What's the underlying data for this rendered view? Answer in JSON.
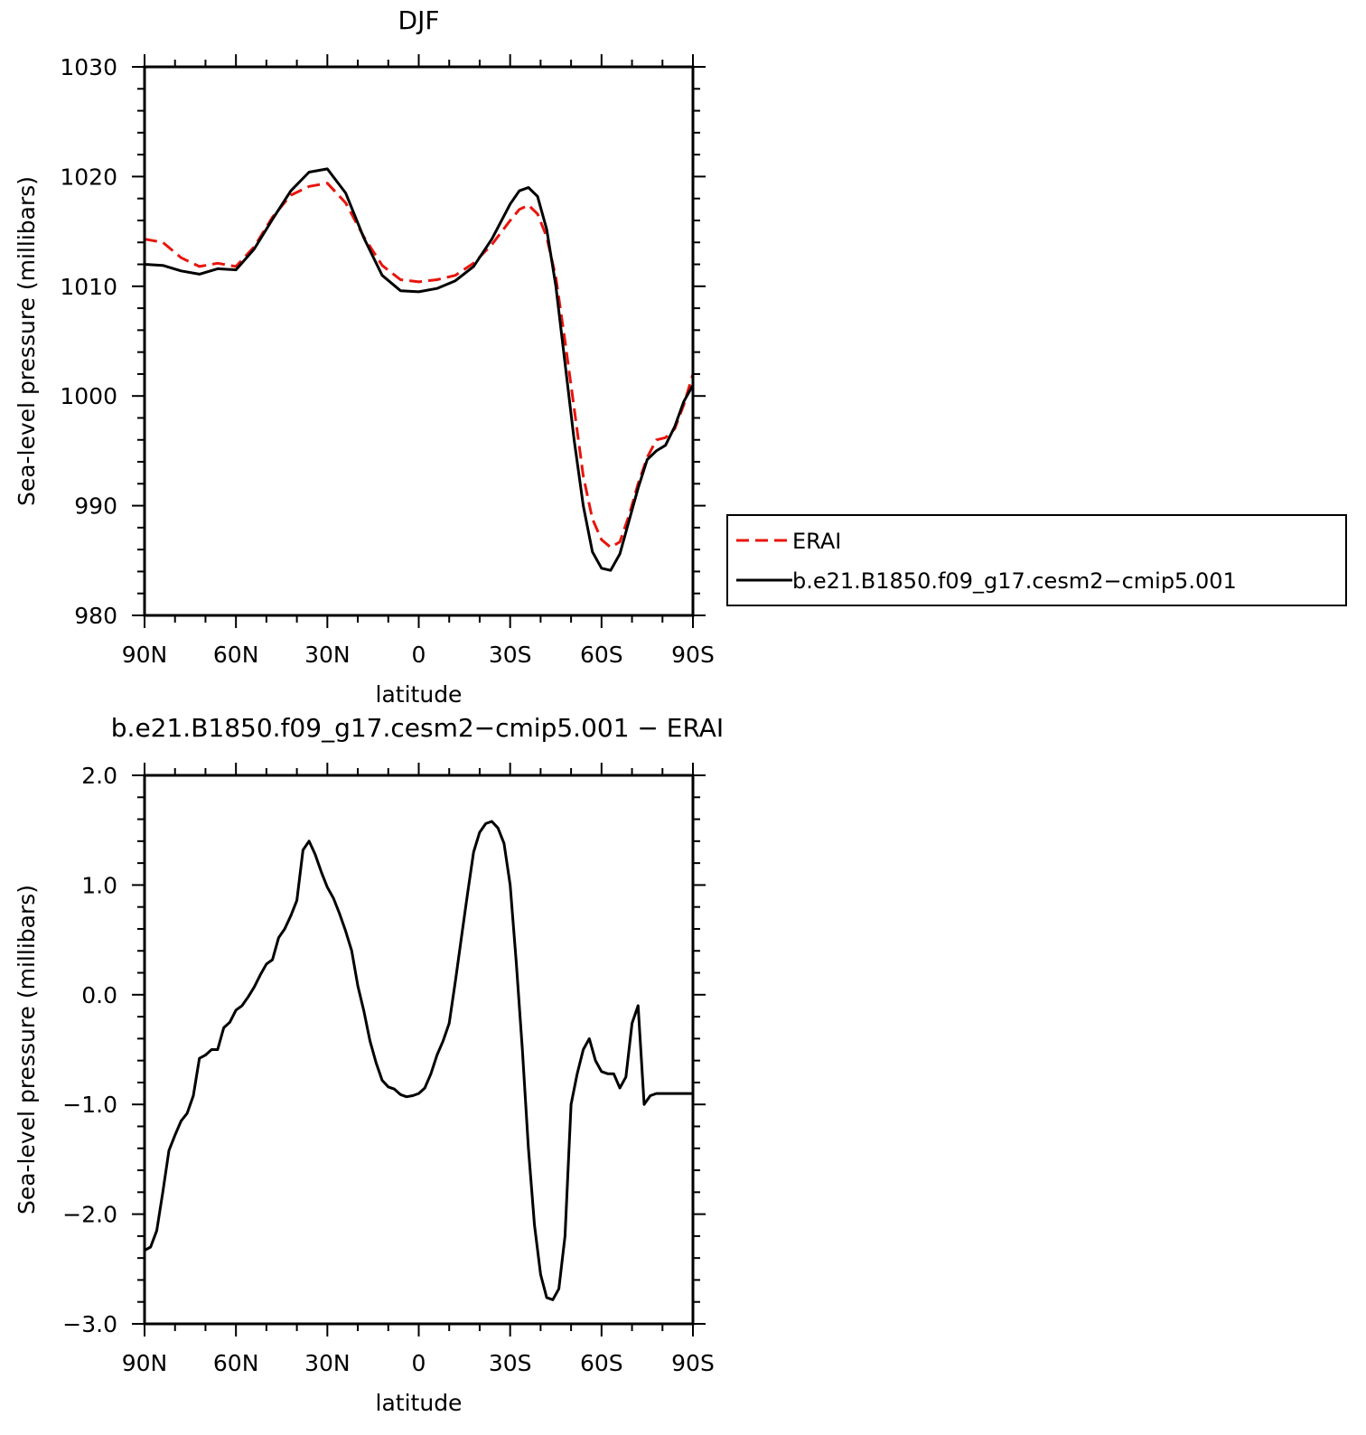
{
  "chart_data": [
    {
      "type": "line",
      "title": "DJF",
      "xlabel": "latitude",
      "ylabel": "Sea-level pressure (millibars)",
      "x_ticks": [
        {
          "value": -90,
          "label": "90N"
        },
        {
          "value": -60,
          "label": "60N"
        },
        {
          "value": -30,
          "label": "30N"
        },
        {
          "value": 0,
          "label": "0"
        },
        {
          "value": 30,
          "label": "30S"
        },
        {
          "value": 60,
          "label": "60S"
        },
        {
          "value": 90,
          "label": "90S"
        }
      ],
      "xlim": [
        -90,
        90
      ],
      "ylim": [
        980,
        1030
      ],
      "y_ticks": [
        {
          "value": 980,
          "label": "980"
        },
        {
          "value": 990,
          "label": "990"
        },
        {
          "value": 1000,
          "label": "1000"
        },
        {
          "value": 1010,
          "label": "1010"
        },
        {
          "value": 1020,
          "label": "1020"
        },
        {
          "value": 1030,
          "label": "1030"
        }
      ],
      "legend": {
        "placement": "right"
      },
      "series": [
        {
          "name": "ERAI",
          "color": "#e8140c",
          "dash": "dashed",
          "x": [
            -90,
            -84,
            -78,
            -72,
            -66,
            -60,
            -54,
            -48,
            -42,
            -36,
            -30,
            -24,
            -18,
            -12,
            -6,
            0,
            6,
            12,
            18,
            24,
            30,
            33,
            36,
            39,
            42,
            45,
            48,
            51,
            54,
            57,
            60,
            63,
            66,
            69,
            72,
            75,
            78,
            81,
            84,
            87,
            90
          ],
          "y": [
            1014.3,
            1014.0,
            1012.6,
            1011.8,
            1012.1,
            1011.8,
            1013.6,
            1016.3,
            1018.3,
            1019.1,
            1019.4,
            1017.6,
            1014.5,
            1011.9,
            1010.6,
            1010.4,
            1010.6,
            1011.0,
            1012.1,
            1013.8,
            1016.0,
            1017.0,
            1017.4,
            1016.6,
            1014.5,
            1010.8,
            1005.0,
            998.9,
            992.7,
            988.8,
            986.9,
            986.2,
            986.7,
            989.1,
            992.0,
            994.4,
            996.0,
            996.2,
            997.0,
            999.2,
            1002.0
          ]
        },
        {
          "name": "b.e21.B1850.f09_g17.cesm2−cmip5.001",
          "color": "#000000",
          "dash": "solid",
          "x": [
            -90,
            -84,
            -78,
            -72,
            -66,
            -60,
            -54,
            -48,
            -42,
            -36,
            -30,
            -24,
            -18,
            -12,
            -6,
            0,
            6,
            12,
            18,
            24,
            30,
            33,
            36,
            39,
            42,
            45,
            48,
            51,
            54,
            57,
            60,
            63,
            66,
            69,
            72,
            75,
            78,
            81,
            84,
            87,
            90
          ],
          "y": [
            1012.0,
            1011.9,
            1011.4,
            1011.1,
            1011.6,
            1011.5,
            1013.4,
            1016.1,
            1018.7,
            1020.4,
            1020.7,
            1018.5,
            1014.4,
            1011.0,
            1009.6,
            1009.5,
            1009.8,
            1010.5,
            1011.8,
            1014.3,
            1017.5,
            1018.7,
            1019.0,
            1018.2,
            1015.2,
            1010.0,
            1003.0,
            996.0,
            990.0,
            985.8,
            984.3,
            984.1,
            985.6,
            988.6,
            991.6,
            994.2,
            995.0,
            995.5,
            997.2,
            999.5,
            1001.0
          ]
        }
      ]
    },
    {
      "type": "line",
      "title": "b.e21.B1850.f09_g17.cesm2−cmip5.001  −  ERAI",
      "xlabel": "latitude",
      "ylabel": "Sea-level pressure (millibars)",
      "x_ticks": [
        {
          "value": -90,
          "label": "90N"
        },
        {
          "value": -60,
          "label": "60N"
        },
        {
          "value": -30,
          "label": "30N"
        },
        {
          "value": 0,
          "label": "0"
        },
        {
          "value": 30,
          "label": "30S"
        },
        {
          "value": 60,
          "label": "60S"
        },
        {
          "value": 90,
          "label": "90S"
        }
      ],
      "xlim": [
        -90,
        90
      ],
      "ylim": [
        -3.0,
        2.0
      ],
      "y_ticks": [
        {
          "value": -3.0,
          "label": "−3.0"
        },
        {
          "value": -2.0,
          "label": "−2.0"
        },
        {
          "value": -1.0,
          "label": "−1.0"
        },
        {
          "value": 0.0,
          "label": "0.0"
        },
        {
          "value": 1.0,
          "label": "1.0"
        },
        {
          "value": 2.0,
          "label": "2.0"
        }
      ],
      "series": [
        {
          "color": "#000000",
          "dash": "solid",
          "x": [
            -90,
            -88,
            -86,
            -84,
            -82,
            -80,
            -78,
            -76,
            -74,
            -72,
            -70,
            -68,
            -66,
            -64,
            -62,
            -60,
            -58,
            -56,
            -54,
            -52,
            -50,
            -48,
            -46,
            -44,
            -42,
            -40,
            -38,
            -36,
            -34,
            -32,
            -30,
            -28,
            -26,
            -24,
            -22,
            -20,
            -18,
            -16,
            -14,
            -12,
            -10,
            -8,
            -6,
            -4,
            -2,
            0,
            2,
            4,
            6,
            8,
            10,
            12,
            14,
            16,
            18,
            20,
            22,
            24,
            26,
            28,
            30,
            32,
            34,
            36,
            38,
            40,
            42,
            44,
            46,
            48,
            50,
            52,
            54,
            56,
            58,
            60,
            62,
            64,
            66,
            68,
            70,
            72,
            74,
            76,
            78,
            80,
            82,
            84,
            86,
            88,
            90
          ],
          "y": [
            -2.33,
            -2.3,
            -2.15,
            -1.8,
            -1.42,
            -1.28,
            -1.15,
            -1.08,
            -0.92,
            -0.58,
            -0.55,
            -0.5,
            -0.5,
            -0.3,
            -0.25,
            -0.14,
            -0.1,
            -0.02,
            0.07,
            0.18,
            0.28,
            0.32,
            0.52,
            0.6,
            0.72,
            0.86,
            1.32,
            1.4,
            1.28,
            1.12,
            0.98,
            0.88,
            0.74,
            0.58,
            0.4,
            0.08,
            -0.15,
            -0.42,
            -0.62,
            -0.78,
            -0.84,
            -0.86,
            -0.91,
            -0.93,
            -0.92,
            -0.9,
            -0.85,
            -0.72,
            -0.55,
            -0.42,
            -0.26,
            0.12,
            0.52,
            0.92,
            1.3,
            1.48,
            1.56,
            1.58,
            1.52,
            1.38,
            1.0,
            0.3,
            -0.5,
            -1.4,
            -2.1,
            -2.55,
            -2.76,
            -2.78,
            -2.68,
            -2.2,
            -1.0,
            -0.72,
            -0.5,
            -0.4,
            -0.6,
            -0.7,
            -0.72,
            -0.72,
            -0.85,
            -0.75,
            -0.26,
            -0.1,
            -1.0,
            -0.92,
            -0.9,
            -0.9,
            -0.9,
            -0.9,
            -0.9,
            -0.9,
            -0.9
          ]
        }
      ]
    }
  ]
}
